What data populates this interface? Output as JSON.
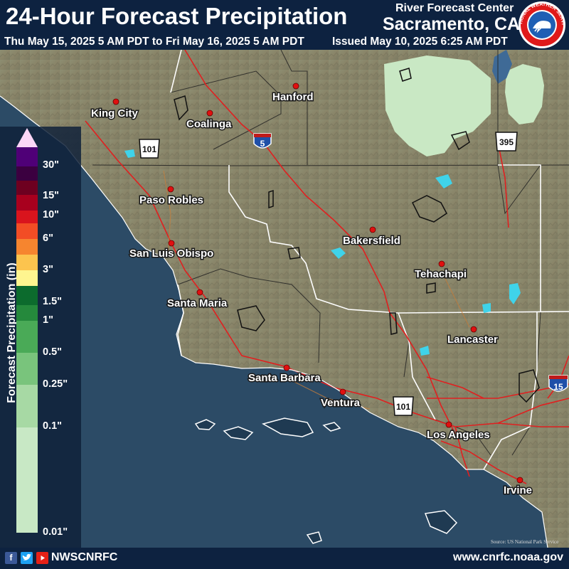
{
  "header": {
    "title": "24-Hour Forecast Precipitation",
    "period": "Thu May 15, 2025 5 AM PDT to Fri May 16, 2025 5 AM PDT",
    "issued": "Issued May 10, 2025 6:25 AM PDT",
    "rfc_line1": "River Forecast Center",
    "rfc_line2": "Sacramento, CA",
    "logo_text": "NATIONAL WEATHER SERVICE"
  },
  "legend": {
    "title": "Forecast Precipitation (in)",
    "ticks": [
      "30\"",
      "15\"",
      "10\"",
      "6\"",
      "3\"",
      "1.5\"",
      "1\"",
      "0.5\"",
      "0.25\"",
      "0.1\"",
      "0.01\""
    ],
    "colors": [
      "#fbd7f7",
      "#4f0077",
      "#3b0040",
      "#6e0020",
      "#a8001e",
      "#d9141d",
      "#f24d25",
      "#f6852f",
      "#fcc44e",
      "#fef58f",
      "#0c6b2d",
      "#25893c",
      "#4aaa57",
      "#79c47c",
      "#a7d9a4",
      "#c8e8c5"
    ]
  },
  "cities": [
    "King City",
    "Coalinga",
    "Hanford",
    "Paso Robles",
    "San Luis Obispo",
    "Santa Maria",
    "Bakersfield",
    "Tehachapi",
    "Lancaster",
    "Santa Barbara",
    "Ventura",
    "Los Angeles",
    "Irvine"
  ],
  "highways": [
    "5",
    "101",
    "395",
    "101",
    "15"
  ],
  "map_source": "Source: US National Park Service",
  "footer": {
    "handle": "NWSCNRFC",
    "website": "www.cnrfc.noaa.gov"
  },
  "colors": {
    "background": "#0d2240",
    "ocean": "#2c4b66",
    "land": "#8b8b6e",
    "roads": "#e02020",
    "city_dot": "#e01010",
    "lake": "#c9e8c4"
  }
}
